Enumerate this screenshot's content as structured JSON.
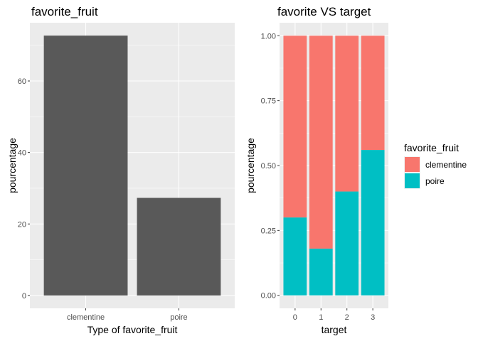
{
  "chart_data": [
    {
      "type": "bar",
      "title": "favorite_fruit",
      "xlabel": "Type  of favorite_fruit",
      "ylabel": "pourcentage",
      "categories": [
        "clementine",
        "poire"
      ],
      "values": [
        72.7,
        27.3
      ],
      "ylim": [
        -3.6,
        76.3
      ],
      "yticks": [
        0,
        20,
        40,
        60
      ],
      "bar_color": "#595959",
      "panel_background": "#EBEBEB",
      "grid": true
    },
    {
      "type": "bar",
      "stacked": true,
      "title": "favorite VS target",
      "xlabel": "target",
      "ylabel": "pourcentage",
      "categories": [
        "0",
        "1",
        "2",
        "3"
      ],
      "ylim": [
        -0.05,
        1.05
      ],
      "yticks": [
        "0.00",
        "0.25",
        "0.50",
        "0.75",
        "1.00"
      ],
      "series": [
        {
          "name": "poire",
          "color": "#00BFC4",
          "values": [
            0.3,
            0.18,
            0.4,
            0.56
          ]
        },
        {
          "name": "clementine",
          "color": "#F8766D",
          "values": [
            0.7,
            0.82,
            0.6,
            0.44
          ]
        }
      ],
      "legend": {
        "title": "favorite_fruit",
        "position": "right",
        "items": [
          {
            "name": "clementine",
            "color": "#F8766D"
          },
          {
            "name": "poire",
            "color": "#00BFC4"
          }
        ]
      },
      "panel_background": "#EBEBEB",
      "grid": true
    }
  ]
}
